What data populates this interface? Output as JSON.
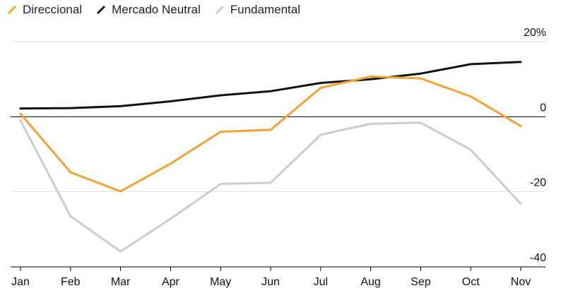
{
  "chart_data": {
    "type": "line",
    "categories": [
      "Jan",
      "Feb",
      "Mar",
      "Apr",
      "May",
      "Jun",
      "Jul",
      "Aug",
      "Sep",
      "Oct",
      "Nov"
    ],
    "series": [
      {
        "name": "Direccional",
        "color": "#f5a234",
        "values": [
          0.8,
          -14.8,
          -19.9,
          -12.5,
          -4.0,
          -3.5,
          7.7,
          10.7,
          10.2,
          5.4,
          -2.5
        ]
      },
      {
        "name": "Mercado Neutral",
        "color": "#111111",
        "values": [
          2.2,
          2.3,
          2.8,
          4.1,
          5.7,
          6.8,
          9.0,
          10.0,
          11.5,
          14.0,
          14.6
        ]
      },
      {
        "name": "Fundamental",
        "color": "#cccccc",
        "values": [
          -1.0,
          -26.5,
          -35.9,
          -27.2,
          -17.9,
          -17.6,
          -4.8,
          -1.9,
          -1.6,
          -8.8,
          -23.2
        ]
      }
    ],
    "y_ticks": [
      20,
      0,
      -20,
      -40
    ],
    "y_tick_labels": [
      "20%",
      "0",
      "-20",
      "-40"
    ],
    "ylim": [
      -40,
      20
    ],
    "title": "",
    "xlabel": "",
    "ylabel": "",
    "legend_position": "top-left"
  }
}
